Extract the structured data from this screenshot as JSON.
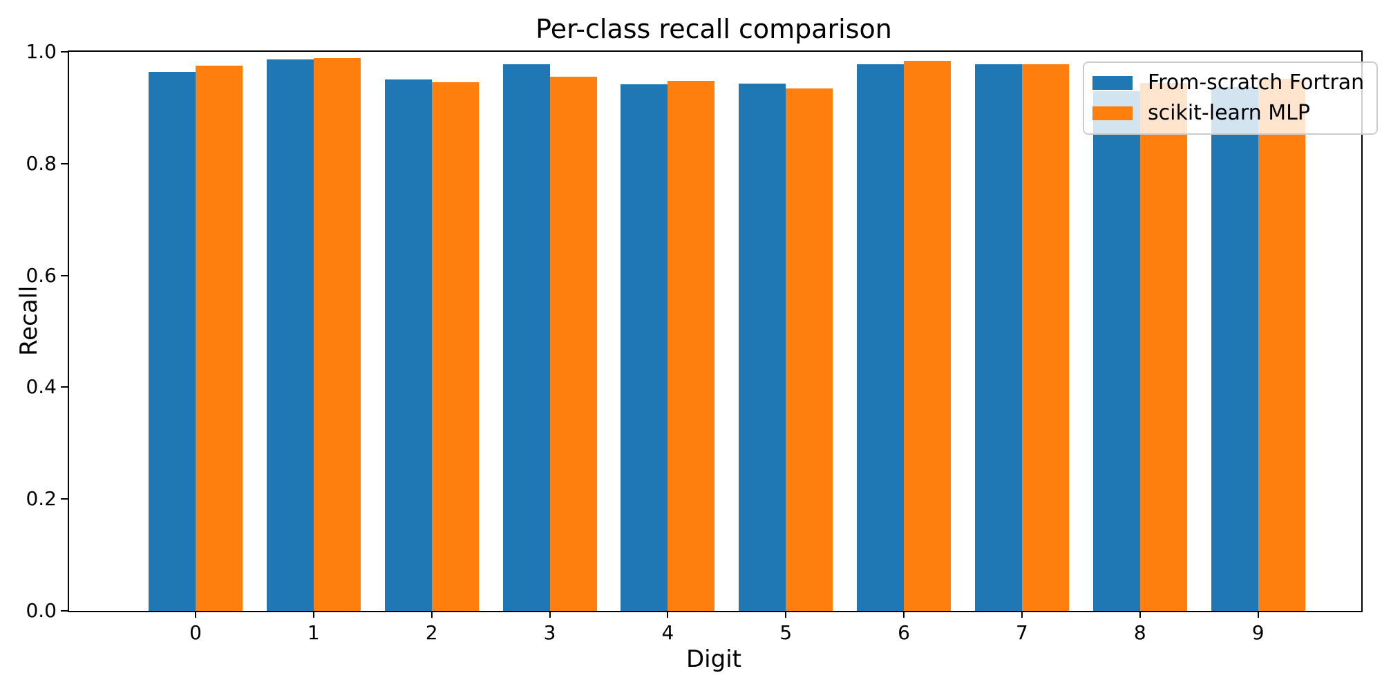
{
  "chart_data": {
    "type": "bar",
    "title": "Per-class recall comparison",
    "xlabel": "Digit",
    "ylabel": "Recall",
    "categories": [
      "0",
      "1",
      "2",
      "3",
      "4",
      "5",
      "6",
      "7",
      "8",
      "9"
    ],
    "series": [
      {
        "name": "From-scratch Fortran",
        "color": "#1f77b4",
        "values": [
          0.964,
          0.986,
          0.951,
          0.978,
          0.942,
          0.943,
          0.978,
          0.978,
          0.93,
          0.937
        ]
      },
      {
        "name": "scikit-learn MLP",
        "color": "#ff7f0e",
        "values": [
          0.975,
          0.989,
          0.946,
          0.956,
          0.948,
          0.934,
          0.984,
          0.978,
          0.944,
          0.952
        ]
      }
    ],
    "ylim": [
      0.0,
      1.0
    ],
    "yticks": [
      "0.0",
      "0.2",
      "0.4",
      "0.6",
      "0.8",
      "1.0"
    ],
    "grid": false,
    "legend_position": "upper right",
    "background_color": "#ffffff",
    "spine_color": "#000000"
  }
}
